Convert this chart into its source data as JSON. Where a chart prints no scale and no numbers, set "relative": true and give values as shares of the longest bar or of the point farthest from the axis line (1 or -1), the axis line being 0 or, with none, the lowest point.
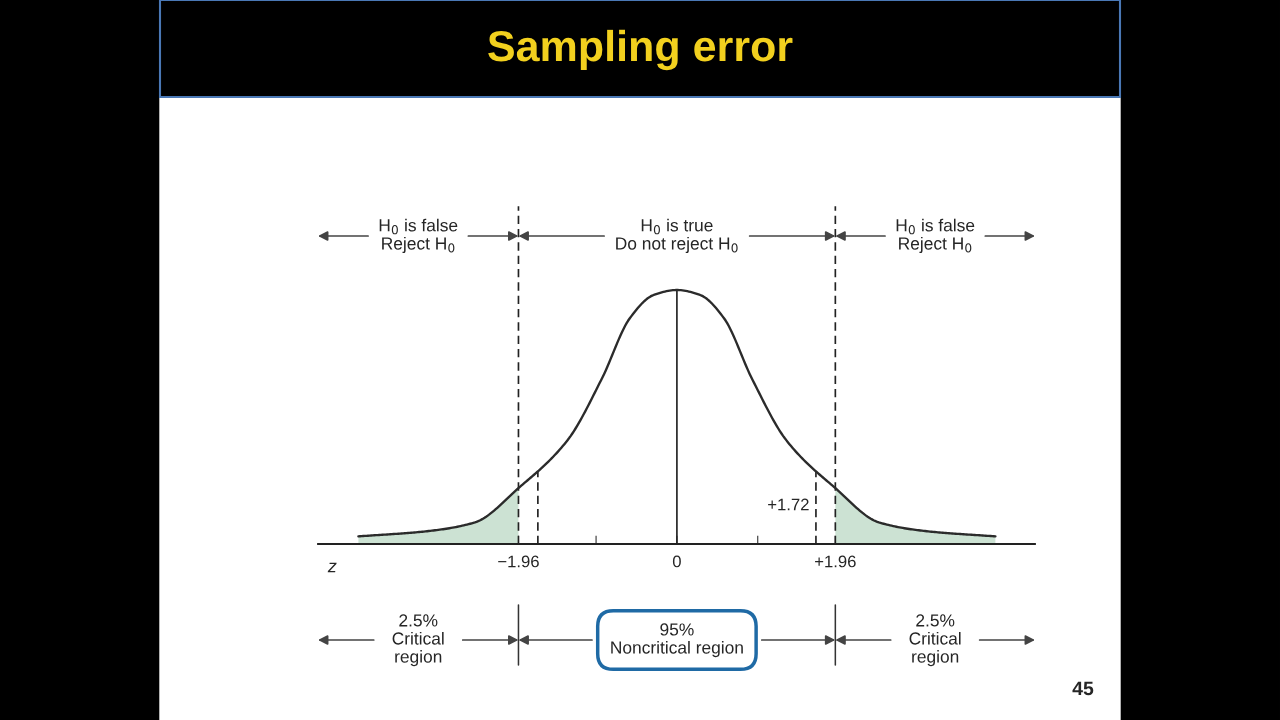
{
  "chart_data": {
    "type": "line",
    "title": "Sampling error",
    "xlabel": "z",
    "relative": true,
    "x": [
      -3.94,
      -3.1,
      -2.5,
      -1.96,
      -1.35,
      -0.93,
      -0.58,
      -0.29,
      0,
      0.29,
      0.58,
      0.93,
      1.35,
      1.96,
      2.5,
      3.1,
      3.94
    ],
    "series": [
      {
        "color": "#2b2b2b",
        "values": [
          0.03,
          0.05,
          0.085,
          0.22,
          0.41,
          0.65,
          0.89,
          0.98,
          1,
          0.98,
          0.89,
          0.65,
          0.41,
          0.22,
          0.085,
          0.05,
          0.03
        ]
      },
      {
        "type": "area",
        "color": "#cce2d3",
        "x": [
          -3.94,
          -3.1,
          -2.5,
          -1.96
        ],
        "values": [
          0.03,
          0.05,
          0.085,
          0.22
        ]
      },
      {
        "type": "area",
        "color": "#cce2d3",
        "x": [
          1.96,
          2.5,
          3.1,
          3.94
        ],
        "values": [
          0.22,
          0.085,
          0.05,
          0.03
        ]
      }
    ],
    "xlim": [
      -4.44,
      4.43
    ],
    "xticks": [
      {
        "value": -3,
        "label": null
      },
      {
        "value": -2,
        "label": null
      },
      {
        "value": -1.96,
        "label": "−1.96"
      },
      {
        "value": -1,
        "label": null
      },
      0,
      {
        "value": 1,
        "label": null
      },
      {
        "value": 1.96,
        "label": "+1.96"
      },
      {
        "value": 2,
        "label": null
      },
      {
        "value": 3,
        "label": null
      }
    ],
    "ref_lines": [
      {
        "axis": "x",
        "value": -1.96,
        "line_style": "dashed",
        "color": "#222222"
      },
      {
        "axis": "x",
        "value": 1.96,
        "line_style": "dashed",
        "color": "#222222"
      },
      {
        "axis": "x",
        "value": -1.72,
        "line_style": "dashed",
        "color": "#222222"
      },
      {
        "axis": "x",
        "value": 1.72,
        "label": "+1.72",
        "line_style": "dashed",
        "color": "#222222"
      },
      {
        "axis": "x",
        "value": 0,
        "line_style": "solid",
        "color": "#222222"
      }
    ],
    "annotations": [
      "H$_{0}$ is false\nReject H$_{0}$",
      "H$_{0}$ is true\nDo not reject H$_{0}$",
      "H$_{0}$ is false\nReject H$_{0}$",
      "2.5%\nCritical\nregion",
      "95%\nNoncritical region",
      "2.5%\nCritical\nregion",
      "45"
    ]
  }
}
